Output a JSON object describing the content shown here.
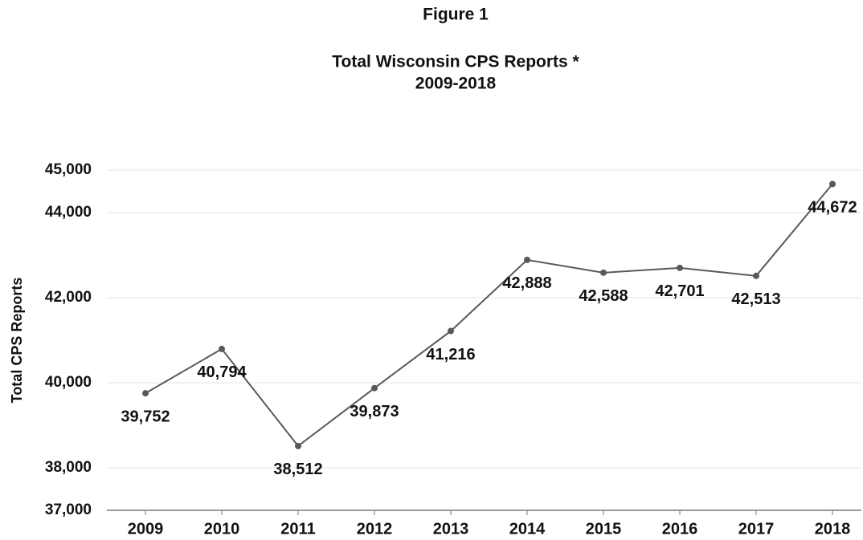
{
  "chart_data": {
    "type": "line",
    "figure_label": "Figure 1",
    "title": "Total Wisconsin CPS Reports *",
    "subtitle": "2009-2018",
    "ylabel": "Total CPS Reports",
    "categories": [
      "2009",
      "2010",
      "2011",
      "2012",
      "2013",
      "2014",
      "2015",
      "2016",
      "2017",
      "2018"
    ],
    "series": [
      {
        "name": "Total CPS Reports",
        "color": "#595959",
        "values": [
          39752,
          40794,
          38512,
          39873,
          41216,
          42888,
          42588,
          42701,
          42513,
          44672
        ],
        "value_labels": [
          "39,752",
          "40,794",
          "38,512",
          "39,873",
          "41,216",
          "42,888",
          "42,588",
          "42,701",
          "42,513",
          "44,672"
        ]
      }
    ],
    "ylim": [
      37000,
      45000
    ],
    "yticks": [
      {
        "value": 37000,
        "label": "37,000"
      },
      {
        "value": 38000,
        "label": "38,000"
      },
      {
        "value": 40000,
        "label": "40,000"
      },
      {
        "value": 42000,
        "label": "42,000"
      },
      {
        "value": 44000,
        "label": "44,000"
      },
      {
        "value": 45000,
        "label": "45,000"
      }
    ],
    "grid": true
  }
}
